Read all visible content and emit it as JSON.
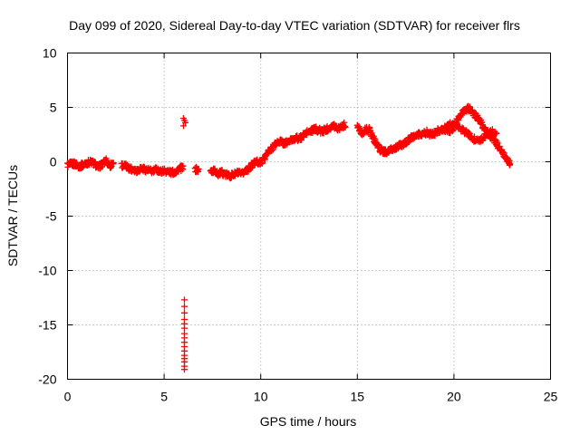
{
  "chart_data": {
    "type": "scatter",
    "title": "Day 099 of 2020, Sidereal Day-to-day VTEC variation (SDTVAR) for receiver flrs",
    "xlabel": "GPS time / hours",
    "ylabel": "SDTVAR / TECUs",
    "xlim": [
      0,
      25
    ],
    "ylim": [
      -20,
      10
    ],
    "xticks": [
      0,
      5,
      10,
      15,
      20,
      25
    ],
    "yticks": [
      -20,
      -15,
      -10,
      -5,
      0,
      5,
      10
    ],
    "xtick_labels": [
      "0",
      "5",
      "10",
      "15",
      "20",
      "25"
    ],
    "ytick_labels": [
      "-20",
      "-15",
      "-10",
      "-5",
      "0",
      "5",
      "10"
    ],
    "grid": true,
    "marker": "plus",
    "series_color": "#ff0000",
    "series": [
      {
        "name": "main_trace",
        "x": [
          0.0,
          0.2,
          0.4,
          0.6,
          0.8,
          1.0,
          1.2,
          1.4,
          1.6,
          1.8,
          2.0,
          2.2,
          2.4,
          2.6,
          2.8,
          3.0,
          3.2,
          3.4,
          3.6,
          3.8,
          4.0,
          4.2,
          4.4,
          4.6,
          4.8,
          5.0,
          5.2,
          5.4,
          5.6,
          5.8,
          6.0,
          6.2,
          6.4,
          6.6,
          6.8,
          7.0,
          7.2,
          7.4,
          7.6,
          7.8,
          8.0,
          8.2,
          8.4,
          8.6,
          8.8,
          9.0,
          9.2,
          9.4,
          9.6,
          9.8,
          10.0,
          10.2,
          10.4,
          10.6,
          10.8,
          11.0,
          11.2,
          11.4,
          11.6,
          11.8,
          12.0,
          12.2,
          12.4,
          12.6,
          12.8,
          13.0,
          13.2,
          13.4,
          13.6,
          13.8,
          14.0,
          14.2,
          14.4,
          14.6,
          14.8,
          15.0,
          15.2,
          15.4,
          15.6,
          15.8,
          16.0,
          16.2,
          16.4,
          16.6,
          16.8,
          17.0,
          17.2,
          17.4,
          17.6,
          17.8,
          18.0,
          18.2,
          18.4,
          18.6,
          18.8,
          19.0,
          19.2,
          19.4,
          19.6,
          19.8,
          20.0,
          20.2,
          20.4,
          20.6,
          20.8,
          21.0,
          21.2,
          21.4,
          21.6,
          21.8,
          22.0,
          22.2,
          22.4,
          22.6,
          22.8,
          22.9
        ],
        "y": [
          -0.3,
          -0.2,
          -0.2,
          -0.4,
          -0.3,
          -0.1,
          0.0,
          -0.2,
          -0.5,
          -0.2,
          0.1,
          -0.4,
          0.0,
          null,
          -0.3,
          -0.4,
          -0.6,
          -0.7,
          -0.8,
          -0.6,
          -0.7,
          -0.8,
          -0.9,
          -0.7,
          -0.9,
          -0.8,
          -0.9,
          -1.0,
          -0.9,
          -0.6,
          -0.6,
          null,
          null,
          -0.7,
          -0.8,
          null,
          null,
          -0.9,
          -0.8,
          -1.1,
          -1.0,
          -1.2,
          -1.3,
          -1.2,
          -1.0,
          -1.2,
          -0.8,
          -0.6,
          -0.2,
          0.0,
          -0.1,
          0.4,
          0.9,
          1.3,
          1.7,
          1.9,
          1.7,
          1.8,
          2.0,
          2.2,
          2.1,
          2.4,
          2.7,
          2.8,
          3.0,
          2.9,
          2.8,
          3.0,
          3.2,
          3.3,
          3.1,
          3.3,
          3.4,
          null,
          null,
          3.3,
          2.6,
          2.9,
          3.0,
          2.3,
          1.6,
          1.1,
          0.9,
          1.0,
          1.1,
          1.3,
          1.5,
          1.6,
          1.9,
          2.2,
          2.4,
          2.5,
          2.6,
          2.7,
          2.5,
          2.6,
          2.9,
          3.0,
          2.8,
          2.9,
          3.1,
          4.0,
          4.5,
          4.8,
          4.9,
          4.4,
          4.1,
          3.6,
          3.0,
          2.5,
          2.2,
          1.7,
          1.1,
          0.6,
          0.1,
          -0.2
        ]
      },
      {
        "name": "upper_branch",
        "x": [
          19.5,
          19.8,
          20.1,
          20.4,
          20.7,
          21.0,
          21.3,
          21.6,
          21.9,
          22.2
        ],
        "y": [
          3.2,
          3.4,
          3.3,
          3.0,
          2.6,
          2.1,
          1.9,
          2.3,
          2.8,
          2.6
        ]
      },
      {
        "name": "outliers_high",
        "x": [
          6.0,
          6.05,
          6.1,
          6.0
        ],
        "y": [
          3.3,
          3.8,
          3.6,
          4.0
        ]
      },
      {
        "name": "outliers_low",
        "x": [
          6.05,
          6.05,
          6.05,
          6.05,
          6.05,
          6.05,
          6.05,
          6.05,
          6.05,
          6.05,
          6.05,
          6.05,
          6.05,
          6.05,
          6.05,
          6.05
        ],
        "y": [
          -12.7,
          -13.3,
          -13.9,
          -14.5,
          -14.9,
          -15.3,
          -15.8,
          -16.2,
          -16.6,
          -17.0,
          -17.4,
          -17.8,
          -18.1,
          -18.4,
          -18.8,
          -19.1
        ]
      }
    ]
  }
}
